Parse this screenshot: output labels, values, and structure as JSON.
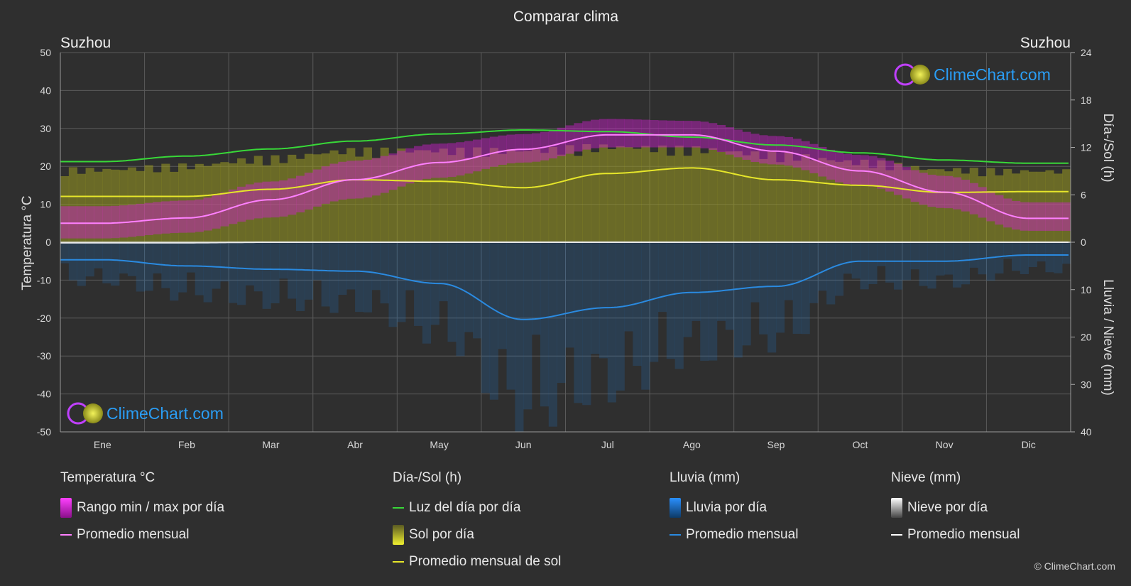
{
  "title": "Comparar clima",
  "location_left": "Suzhou",
  "location_right": "Suzhou",
  "watermark": "ClimeChart.com",
  "copyright": "© ClimeChart.com",
  "colors": {
    "background": "#2f2f2f",
    "grid": "#5a5a5a",
    "temp_range": "#d020d0",
    "temp_avg": "#ff80ff",
    "daylight": "#38d838",
    "sun_fill": "#9a9a20",
    "sun_avg": "#e6e62a",
    "rain": "#1e78c8",
    "rain_avg": "#2a8ae0",
    "snow_avg": "#ffffff",
    "brand": "#2a9df4"
  },
  "chart_data": {
    "type": "area",
    "x_label": "",
    "months": [
      "Ene",
      "Feb",
      "Mar",
      "Abr",
      "May",
      "Jun",
      "Jul",
      "Ago",
      "Sep",
      "Oct",
      "Nov",
      "Dic"
    ],
    "left_axis": {
      "label": "Temperatura °C",
      "min": -50,
      "max": 50,
      "ticks": [
        50,
        40,
        30,
        20,
        10,
        0,
        -10,
        -20,
        -30,
        -40,
        -50
      ]
    },
    "right_axis_top": {
      "label": "Día-/Sol (h)",
      "min": 0,
      "max": 24,
      "ticks": [
        24,
        18,
        12,
        6,
        0
      ]
    },
    "right_axis_bottom": {
      "label": "Lluvia / Nieve (mm)",
      "min": 0,
      "max": 40,
      "ticks": [
        0,
        10,
        20,
        30,
        40
      ]
    },
    "series": [
      {
        "name": "Promedio mensual",
        "group": "Temperatura °C",
        "unit": "°C",
        "values": [
          5.0,
          6.4,
          11.2,
          16.5,
          21.0,
          24.5,
          28.3,
          28.3,
          24.0,
          18.8,
          13.2,
          6.3
        ]
      },
      {
        "name": "Rango min / max por día",
        "group": "Temperatura °C",
        "unit": "°C",
        "min": [
          1.0,
          2.5,
          6.5,
          11.5,
          17.0,
          21.0,
          25.0,
          25.0,
          20.5,
          15.0,
          9.0,
          3.0
        ],
        "max": [
          9.5,
          11.0,
          16.0,
          21.5,
          26.0,
          28.5,
          32.5,
          32.0,
          28.0,
          23.0,
          17.5,
          10.5
        ]
      },
      {
        "name": "Luz del día por día",
        "group": "Día-/Sol (h)",
        "unit": "h",
        "values": [
          10.2,
          10.9,
          11.8,
          12.8,
          13.7,
          14.2,
          14.0,
          13.3,
          12.3,
          11.3,
          10.4,
          10.0
        ]
      },
      {
        "name": "Sol por día",
        "group": "Día-/Sol (h)",
        "unit": "h",
        "values": [
          9.5,
          10.0,
          11.0,
          12.0,
          12.0,
          12.0,
          12.5,
          12.2,
          11.5,
          10.5,
          9.5,
          9.3
        ]
      },
      {
        "name": "Promedio mensual de sol",
        "group": "Día-/Sol (h)",
        "unit": "h",
        "values": [
          5.8,
          5.8,
          6.7,
          7.9,
          7.7,
          6.9,
          8.7,
          9.4,
          7.9,
          7.2,
          6.3,
          6.4
        ]
      },
      {
        "name": "Lluvia por día",
        "group": "Lluvia (mm)",
        "unit": "mm"
      },
      {
        "name": "Promedio mensual",
        "group": "Lluvia (mm)",
        "unit": "mm",
        "values": [
          3.7,
          5.0,
          5.7,
          6.1,
          8.7,
          16.3,
          13.8,
          10.6,
          9.3,
          4.0,
          4.0,
          2.7
        ]
      },
      {
        "name": "Nieve por día",
        "group": "Nieve (mm)",
        "unit": "mm"
      },
      {
        "name": "Promedio mensual",
        "group": "Nieve (mm)",
        "unit": "mm",
        "values": [
          0.1,
          0.1,
          0,
          0,
          0,
          0,
          0,
          0,
          0,
          0,
          0,
          0
        ]
      }
    ]
  },
  "legend": {
    "groups": [
      {
        "title": "Temperatura °C",
        "items": [
          {
            "label": "Rango min / max por día",
            "swatch": "box-magenta"
          },
          {
            "label": "Promedio mensual",
            "swatch": "line-pink"
          }
        ]
      },
      {
        "title": "Día-/Sol (h)",
        "items": [
          {
            "label": "Luz del día por día",
            "swatch": "line-green"
          },
          {
            "label": "Sol por día",
            "swatch": "box-yellow"
          },
          {
            "label": "Promedio mensual de sol",
            "swatch": "line-yellow"
          }
        ]
      },
      {
        "title": "Lluvia (mm)",
        "items": [
          {
            "label": "Lluvia por día",
            "swatch": "box-blue"
          },
          {
            "label": "Promedio mensual",
            "swatch": "line-blue"
          }
        ]
      },
      {
        "title": "Nieve (mm)",
        "items": [
          {
            "label": "Nieve por día",
            "swatch": "box-white"
          },
          {
            "label": "Promedio mensual",
            "swatch": "line-white"
          }
        ]
      }
    ]
  }
}
